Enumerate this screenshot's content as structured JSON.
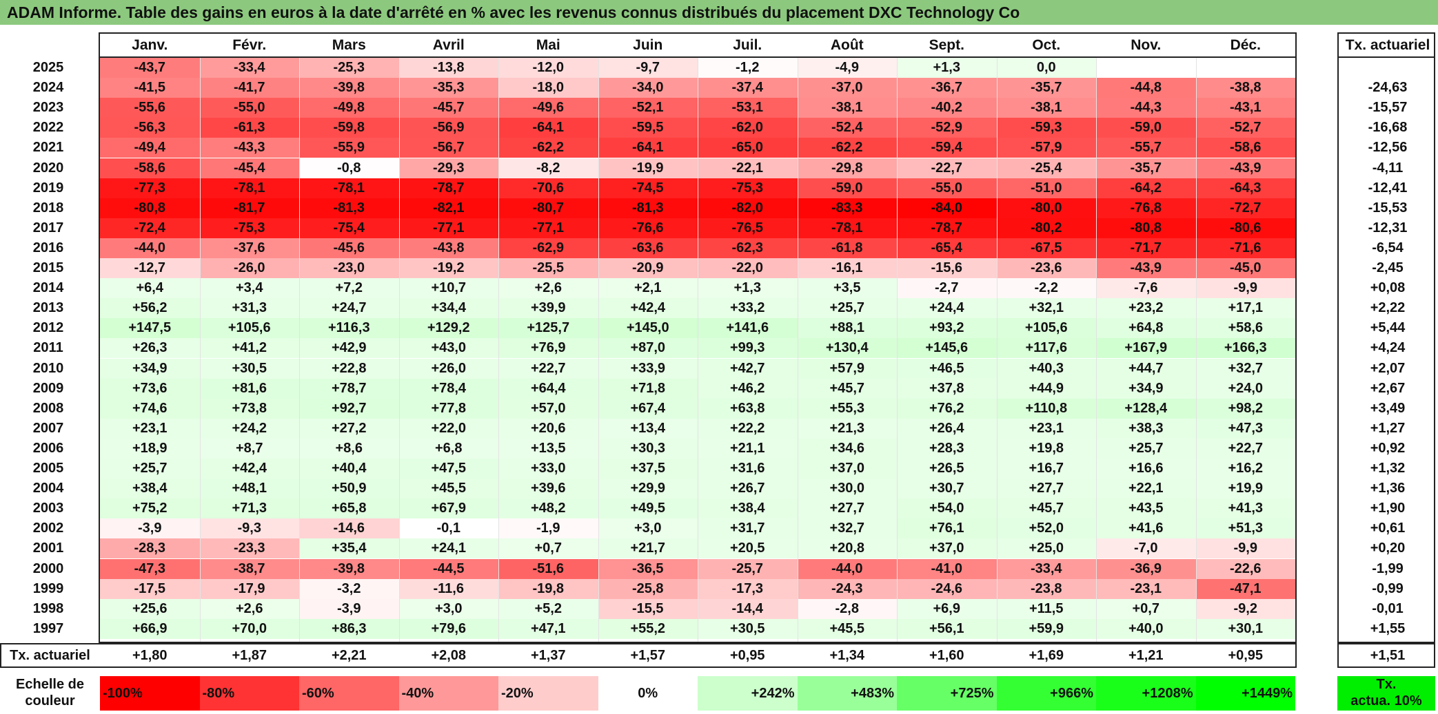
{
  "title": "ADAM Informe. Table des gains en euros à la date d'arrêté en % avec les revenus connus distribués du placement DXC Technology Co",
  "months": [
    "Janv.",
    "Févr.",
    "Mars",
    "Avril",
    "Mai",
    "Juin",
    "Juil.",
    "Août",
    "Sept.",
    "Oct.",
    "Nov.",
    "Déc."
  ],
  "rate_header": "Tx. actuariel",
  "rows": [
    {
      "year": "2025",
      "values": [
        "-43,7",
        "-33,4",
        "-25,3",
        "-13,8",
        "-12,0",
        "-9,7",
        "-1,2",
        "-4,9",
        "+1,3",
        "0,0",
        "",
        ""
      ],
      "rate": ""
    },
    {
      "year": "2024",
      "values": [
        "-41,5",
        "-41,7",
        "-39,8",
        "-35,3",
        "-18,0",
        "-34,0",
        "-37,4",
        "-37,0",
        "-36,7",
        "-35,7",
        "-44,8",
        "-38,8"
      ],
      "rate": "-24,63"
    },
    {
      "year": "2023",
      "values": [
        "-55,6",
        "-55,0",
        "-49,8",
        "-45,7",
        "-49,6",
        "-52,1",
        "-53,1",
        "-38,1",
        "-40,2",
        "-38,1",
        "-44,3",
        "-43,1"
      ],
      "rate": "-15,57"
    },
    {
      "year": "2022",
      "values": [
        "-56,3",
        "-61,3",
        "-59,8",
        "-56,9",
        "-64,1",
        "-59,5",
        "-62,0",
        "-52,4",
        "-52,9",
        "-59,3",
        "-59,0",
        "-52,7"
      ],
      "rate": "-16,68"
    },
    {
      "year": "2021",
      "values": [
        "-49,4",
        "-43,3",
        "-55,9",
        "-56,7",
        "-62,2",
        "-64,1",
        "-65,0",
        "-62,2",
        "-59,4",
        "-57,9",
        "-55,7",
        "-58,6"
      ],
      "rate": "-12,56"
    },
    {
      "year": "2020",
      "values": [
        "-58,6",
        "-45,4",
        "-0,8",
        "-29,3",
        "-8,2",
        "-19,9",
        "-22,1",
        "-29,8",
        "-22,7",
        "-25,4",
        "-35,7",
        "-43,9"
      ],
      "rate": "-4,11"
    },
    {
      "year": "2019",
      "values": [
        "-77,3",
        "-78,1",
        "-78,1",
        "-78,7",
        "-70,6",
        "-74,5",
        "-75,3",
        "-59,0",
        "-55,0",
        "-51,0",
        "-64,2",
        "-64,3"
      ],
      "rate": "-12,41"
    },
    {
      "year": "2018",
      "values": [
        "-80,8",
        "-81,7",
        "-81,3",
        "-82,1",
        "-80,7",
        "-81,3",
        "-82,0",
        "-83,3",
        "-84,0",
        "-80,0",
        "-76,8",
        "-72,7"
      ],
      "rate": "-15,53"
    },
    {
      "year": "2017",
      "values": [
        "-72,4",
        "-75,3",
        "-75,4",
        "-77,1",
        "-77,1",
        "-76,6",
        "-76,5",
        "-78,1",
        "-78,7",
        "-80,2",
        "-80,8",
        "-80,6"
      ],
      "rate": "-12,31"
    },
    {
      "year": "2016",
      "values": [
        "-44,0",
        "-37,6",
        "-45,6",
        "-43,8",
        "-62,9",
        "-63,6",
        "-62,3",
        "-61,8",
        "-65,4",
        "-67,5",
        "-71,7",
        "-71,6"
      ],
      "rate": "-6,54"
    },
    {
      "year": "2015",
      "values": [
        "-12,7",
        "-26,0",
        "-23,0",
        "-19,2",
        "-25,5",
        "-20,9",
        "-22,0",
        "-16,1",
        "-15,6",
        "-23,6",
        "-43,9",
        "-45,0"
      ],
      "rate": "-2,45"
    },
    {
      "year": "2014",
      "values": [
        "+6,4",
        "+3,4",
        "+7,2",
        "+10,7",
        "+2,6",
        "+2,1",
        "+1,3",
        "+3,5",
        "-2,7",
        "-2,2",
        "-7,6",
        "-9,9"
      ],
      "rate": "+0,08"
    },
    {
      "year": "2013",
      "values": [
        "+56,2",
        "+31,3",
        "+24,7",
        "+34,4",
        "+39,9",
        "+42,4",
        "+33,2",
        "+25,7",
        "+24,4",
        "+32,1",
        "+23,2",
        "+17,1"
      ],
      "rate": "+2,22"
    },
    {
      "year": "2012",
      "values": [
        "+147,5",
        "+105,6",
        "+116,3",
        "+129,2",
        "+125,7",
        "+145,0",
        "+141,6",
        "+88,1",
        "+93,2",
        "+105,6",
        "+64,8",
        "+58,6"
      ],
      "rate": "+5,44"
    },
    {
      "year": "2011",
      "values": [
        "+26,3",
        "+41,2",
        "+42,9",
        "+43,0",
        "+76,9",
        "+87,0",
        "+99,3",
        "+130,4",
        "+145,6",
        "+117,6",
        "+167,9",
        "+166,3"
      ],
      "rate": "+4,24"
    },
    {
      "year": "2010",
      "values": [
        "+34,9",
        "+30,5",
        "+22,8",
        "+26,0",
        "+22,7",
        "+33,9",
        "+42,7",
        "+57,9",
        "+46,5",
        "+40,3",
        "+44,7",
        "+32,7"
      ],
      "rate": "+2,07"
    },
    {
      "year": "2009",
      "values": [
        "+73,6",
        "+81,6",
        "+78,7",
        "+78,4",
        "+64,4",
        "+71,8",
        "+46,2",
        "+45,7",
        "+37,8",
        "+44,9",
        "+34,9",
        "+24,0"
      ],
      "rate": "+2,67"
    },
    {
      "year": "2008",
      "values": [
        "+74,6",
        "+73,8",
        "+92,7",
        "+77,8",
        "+57,0",
        "+67,4",
        "+63,8",
        "+55,3",
        "+76,2",
        "+110,8",
        "+128,4",
        "+98,2"
      ],
      "rate": "+3,49"
    },
    {
      "year": "2007",
      "values": [
        "+23,1",
        "+24,2",
        "+27,2",
        "+22,0",
        "+20,6",
        "+13,4",
        "+22,2",
        "+21,3",
        "+26,4",
        "+23,1",
        "+38,3",
        "+47,3"
      ],
      "rate": "+1,27"
    },
    {
      "year": "2006",
      "values": [
        "+18,9",
        "+8,7",
        "+8,6",
        "+6,8",
        "+13,5",
        "+30,3",
        "+21,1",
        "+34,6",
        "+28,3",
        "+19,8",
        "+25,7",
        "+22,7"
      ],
      "rate": "+0,92"
    },
    {
      "year": "2005",
      "values": [
        "+25,7",
        "+42,4",
        "+40,4",
        "+47,5",
        "+33,0",
        "+37,5",
        "+31,6",
        "+37,0",
        "+26,5",
        "+16,7",
        "+16,6",
        "+16,2"
      ],
      "rate": "+1,32"
    },
    {
      "year": "2004",
      "values": [
        "+38,4",
        "+48,1",
        "+50,9",
        "+45,5",
        "+39,6",
        "+29,9",
        "+26,7",
        "+30,0",
        "+30,7",
        "+27,7",
        "+22,1",
        "+19,9"
      ],
      "rate": "+1,36"
    },
    {
      "year": "2003",
      "values": [
        "+75,2",
        "+71,3",
        "+65,8",
        "+67,9",
        "+48,2",
        "+49,5",
        "+38,4",
        "+27,7",
        "+54,0",
        "+45,7",
        "+43,5",
        "+41,3"
      ],
      "rate": "+1,90"
    },
    {
      "year": "2002",
      "values": [
        "-3,9",
        "-9,3",
        "-14,6",
        "-0,1",
        "-1,9",
        "+3,0",
        "+31,7",
        "+32,7",
        "+76,1",
        "+52,0",
        "+41,6",
        "+51,3"
      ],
      "rate": "+0,61"
    },
    {
      "year": "2001",
      "values": [
        "-28,3",
        "-23,3",
        "+35,4",
        "+24,1",
        "+0,7",
        "+21,7",
        "+20,5",
        "+20,8",
        "+37,0",
        "+25,0",
        "-7,0",
        "-9,9"
      ],
      "rate": "+0,20"
    },
    {
      "year": "2000",
      "values": [
        "-47,3",
        "-38,7",
        "-39,8",
        "-44,5",
        "-51,6",
        "-36,5",
        "-25,7",
        "-44,0",
        "-41,0",
        "-33,4",
        "-36,9",
        "-22,6"
      ],
      "rate": "-1,99"
    },
    {
      "year": "1999",
      "values": [
        "-17,5",
        "-17,9",
        "-3,2",
        "-11,6",
        "-19,8",
        "-25,8",
        "-17,3",
        "-24,3",
        "-24,6",
        "-23,8",
        "-23,1",
        "-47,1"
      ],
      "rate": "-0,99"
    },
    {
      "year": "1998",
      "values": [
        "+25,6",
        "+2,6",
        "-3,9",
        "+3,0",
        "+5,2",
        "-15,5",
        "-14,4",
        "-2,8",
        "+6,9",
        "+11,5",
        "+0,7",
        "-9,2"
      ],
      "rate": "-0,01"
    },
    {
      "year": "1997",
      "values": [
        "+66,9",
        "+70,0",
        "+86,3",
        "+79,6",
        "+47,1",
        "+55,2",
        "+30,5",
        "+45,5",
        "+56,1",
        "+59,9",
        "+40,0",
        "+30,1"
      ],
      "rate": "+1,55"
    }
  ],
  "footer": {
    "label": "Tx. actuariel",
    "values": [
      "+1,80",
      "+1,87",
      "+2,21",
      "+2,08",
      "+1,37",
      "+1,57",
      "+0,95",
      "+1,34",
      "+1,60",
      "+1,69",
      "+1,21",
      "+0,95"
    ],
    "rate": "+1,51"
  },
  "scale": {
    "label_line1": "Echelle de",
    "label_line2": "couleur",
    "steps": [
      {
        "label": "-100%",
        "color": "#ff0000"
      },
      {
        "label": "-80%",
        "color": "#ff3333"
      },
      {
        "label": "-60%",
        "color": "#ff6666"
      },
      {
        "label": "-40%",
        "color": "#ff9999"
      },
      {
        "label": "-20%",
        "color": "#ffcccc"
      },
      {
        "label": "0%",
        "color": "#ffffff"
      },
      {
        "label": "+242%",
        "color": "#ccffcc"
      },
      {
        "label": "+483%",
        "color": "#99ff99"
      },
      {
        "label": "+725%",
        "color": "#66ff66"
      },
      {
        "label": "+966%",
        "color": "#33ff33"
      },
      {
        "label": "+1208%",
        "color": "#1aff1a"
      },
      {
        "label": "+1449%",
        "color": "#00ff00"
      }
    ],
    "rate_label_line1": "Tx.",
    "rate_label_line2": "actua. 10%",
    "rate_color": "#00ee00"
  },
  "colors": {
    "title_bg": "#8cc97e",
    "negative_max": "#ff0000",
    "positive_max": "#00ff00"
  }
}
